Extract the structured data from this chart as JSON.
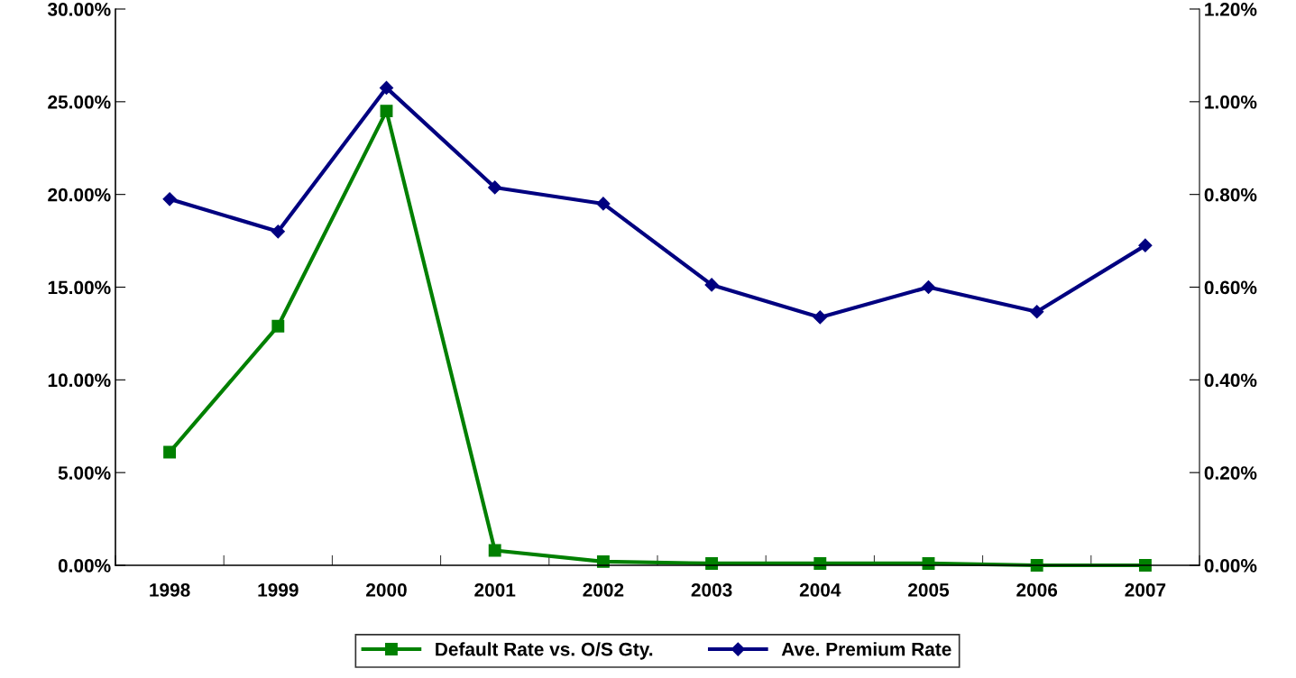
{
  "chart_data": {
    "type": "line",
    "categories": [
      "1998",
      "1999",
      "2000",
      "2001",
      "2002",
      "2003",
      "2004",
      "2005",
      "2006",
      "2007"
    ],
    "series": [
      {
        "name": "Default Rate vs. O/S Gty.",
        "color": "#008000",
        "marker": "square",
        "values": [
          6.1,
          12.9,
          24.5,
          0.8,
          0.2,
          0.1,
          0.1,
          0.1,
          0,
          0
        ]
      },
      {
        "name": "Ave. Premium Rate",
        "color": "#000080",
        "marker": "diamond",
        "axis": "y2",
        "values": [
          0.79,
          0.72,
          1.03,
          0.815,
          0.78,
          0.605,
          0.535,
          0.6,
          0.547,
          0.69
        ]
      }
    ],
    "ylim": [
      0,
      30
    ],
    "yticks": [
      {
        "value": 0,
        "label": "0.00%"
      },
      {
        "value": 5,
        "label": "5.00%"
      },
      {
        "value": 10,
        "label": "10.00%"
      },
      {
        "value": 15,
        "label": "15.00%"
      },
      {
        "value": 20,
        "label": "20.00%"
      },
      {
        "value": 25,
        "label": "25.00%"
      },
      {
        "value": 30,
        "label": "30.00%"
      }
    ],
    "y2lim": [
      0,
      1.2
    ],
    "y2ticks": [
      {
        "value": 0,
        "label": "0.00%"
      },
      {
        "value": 0.2,
        "label": "0.20%"
      },
      {
        "value": 0.4,
        "label": "0.40%"
      },
      {
        "value": 0.6,
        "label": "0.60%"
      },
      {
        "value": 0.8,
        "label": "0.80%"
      },
      {
        "value": 1.0,
        "label": "1.00%"
      },
      {
        "value": 1.2,
        "label": "1.20%"
      }
    ],
    "grid": false,
    "legend": "bottom",
    "line_style": "solid"
  }
}
